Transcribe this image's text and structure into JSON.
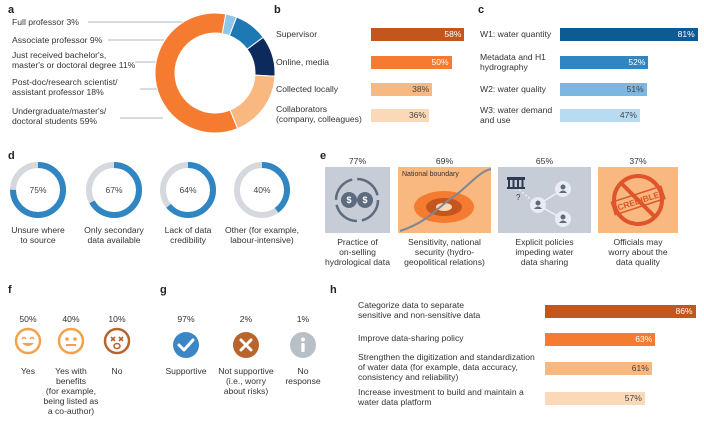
{
  "colors": {
    "orange_dark": "#c4561d",
    "orange": "#f47b30",
    "orange_light": "#f9b87f",
    "orange_pale": "#fbd9b8",
    "blue_dark": "#0e5a93",
    "blue": "#2f86c2",
    "blue_light": "#7bb7e0",
    "blue_pale": "#b7dcf2",
    "navy": "#0d2a5c",
    "grey_ring": "#d5d8de",
    "grey_panel": "#c7cdd6",
    "face_orange": "#f2a24a",
    "face_brown": "#b9632d",
    "check_blue": "#3b87c6",
    "info_grey": "#b9bfc8"
  },
  "panels": {
    "a": {
      "letter": "a"
    },
    "b": {
      "letter": "b"
    },
    "c": {
      "letter": "c"
    },
    "d": {
      "letter": "d"
    },
    "e": {
      "letter": "e"
    },
    "f": {
      "letter": "f"
    },
    "g": {
      "letter": "g"
    },
    "h": {
      "letter": "h"
    }
  },
  "chart_data": [
    {
      "panel": "a",
      "type": "pie",
      "labels": [
        "Full professor 3%",
        "Associate professor 9%",
        "Just received bachelor's, master's or doctoral degree 11%",
        "Post-doc/research scientist/ assistant professor 18%",
        "Undergraduate/master's/ doctoral students 59%"
      ],
      "label_lines": [
        [
          "Full professor 3%"
        ],
        [
          "Associate professor 9%"
        ],
        [
          "Just received bachelor's,",
          "master's or doctoral degree 11%"
        ],
        [
          "Post-doc/research scientist/",
          "assistant professor 18%"
        ],
        [
          "Undergraduate/master's/",
          "doctoral students 59%"
        ]
      ],
      "values": [
        3,
        9,
        11,
        18,
        59
      ],
      "colors": [
        "#8ec6ea",
        "#1e78b4",
        "#0d2a5c",
        "#f9b87f",
        "#f47b30"
      ]
    },
    {
      "panel": "b",
      "type": "bar",
      "categories": [
        "Supervisor",
        "Online, media",
        "Collected locally",
        "Collaborators (company, colleagues)"
      ],
      "category_lines": [
        [
          "Supervisor"
        ],
        [
          "Online, media"
        ],
        [
          "Collected locally"
        ],
        [
          "Collaborators",
          "(company, colleagues)"
        ]
      ],
      "values": [
        58,
        50,
        38,
        36
      ],
      "value_labels": [
        "58%",
        "50%",
        "38%",
        "36%"
      ],
      "colors": [
        "#c4561d",
        "#f47b30",
        "#f9b87f",
        "#fbd9b8"
      ]
    },
    {
      "panel": "c",
      "type": "bar",
      "categories": [
        "W1: water quantity",
        "Metadata and H1 hydrography",
        "W2: water quality",
        "W3: water demand and use"
      ],
      "category_lines": [
        [
          "W1: water quantity"
        ],
        [
          "Metadata and H1",
          "hydrography"
        ],
        [
          "W2: water quality"
        ],
        [
          "W3: water demand",
          "and use"
        ]
      ],
      "values": [
        81,
        52,
        51,
        47
      ],
      "value_labels": [
        "81%",
        "52%",
        "51%",
        "47%"
      ],
      "colors": [
        "#0e5a93",
        "#2f86c2",
        "#7bb7e0",
        "#b7dcf2"
      ]
    },
    {
      "panel": "d",
      "type": "pie",
      "labels": [
        "Unsure where to source",
        "Only secondary data available",
        "Lack of data credibility",
        "Other (for example, labour-intensive)"
      ],
      "label_lines": [
        [
          "Unsure where",
          "to source"
        ],
        [
          "Only secondary",
          "data available"
        ],
        [
          "Lack of data",
          "credibility"
        ],
        [
          "Other (for example,",
          "labour-intensive)"
        ]
      ],
      "values": [
        75,
        67,
        64,
        40
      ],
      "value_labels": [
        "75%",
        "67%",
        "64%",
        "40%"
      ]
    },
    {
      "panel": "e",
      "type": "bar",
      "categories": [
        "Practice of on-selling hydrological data",
        "Sensitivity, national security (hydro-geopolitical relations)",
        "Explicit policies impeding water data sharing",
        "Officials may worry about the data quality"
      ],
      "category_lines": [
        [
          "Practice of",
          "on-selling",
          "hydrological data"
        ],
        [
          "Sensitivity, national",
          "security (hydro-",
          "geopolitical relations)"
        ],
        [
          "Explicit policies",
          "impeding water",
          "data sharing"
        ],
        [
          "Officials may",
          "worry about the",
          "data quality"
        ]
      ],
      "values": [
        77,
        69,
        65,
        37
      ],
      "value_labels": [
        "77%",
        "69%",
        "65%",
        "37%"
      ],
      "annotations": {
        "national_boundary": "National boundary",
        "stamp": "CREDIBLE"
      }
    },
    {
      "panel": "f",
      "type": "bar",
      "categories": [
        "Yes",
        "Yes with benefits (for example, being listed as a co-author)",
        "No"
      ],
      "category_lines": [
        [
          "Yes"
        ],
        [
          "Yes with",
          "benefits",
          "(for example,",
          "being listed as",
          "a co-author)"
        ],
        [
          "No"
        ]
      ],
      "values": [
        50,
        40,
        10
      ],
      "value_labels": [
        "50%",
        "40%",
        "10%"
      ],
      "icons": [
        "smile-face-icon",
        "neutral-face-icon",
        "dizzy-face-icon"
      ]
    },
    {
      "panel": "g",
      "type": "bar",
      "categories": [
        "Supportive",
        "Not supportive (i.e., worry about risks)",
        "No response"
      ],
      "category_lines": [
        [
          "Supportive"
        ],
        [
          "Not supportive",
          "(i.e., worry",
          "about risks)"
        ],
        [
          "No",
          "response"
        ]
      ],
      "values": [
        97,
        2,
        1
      ],
      "value_labels": [
        "97%",
        "2%",
        "1%"
      ],
      "icons": [
        "check-icon",
        "cross-icon",
        "info-icon"
      ]
    },
    {
      "panel": "h",
      "type": "bar",
      "categories": [
        "Categorize data to separate sensitive and non-sensitive data",
        "Improve data-sharing policy",
        "Strengthen the digitization and standardization of water data (for example, data accuracy, consistency and reliability)",
        "Increase investment to build and maintain a water data platform"
      ],
      "category_lines": [
        [
          "Categorize data to separate",
          "sensitive and non-sensitive data"
        ],
        [
          "Improve data-sharing policy"
        ],
        [
          "Strengthen the digitization and standardization",
          "of water data (for example, data accuracy,",
          "consistency and reliability)"
        ],
        [
          "Increase investment to build and maintain a",
          "water data platform"
        ]
      ],
      "values": [
        86,
        63,
        61,
        57
      ],
      "value_labels": [
        "86%",
        "63%",
        "61%",
        "57%"
      ],
      "colors": [
        "#c4561d",
        "#f47b30",
        "#f9b87f",
        "#fbd9b8"
      ]
    }
  ]
}
